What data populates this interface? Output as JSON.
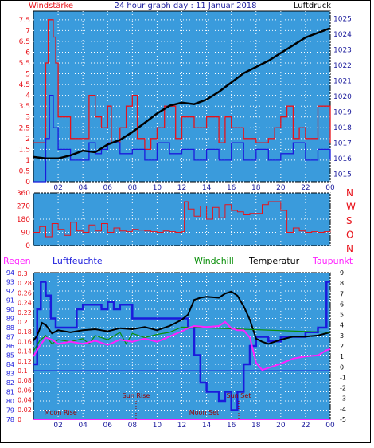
{
  "title": "24 hour graph day : 11 Januar 2018",
  "colors": {
    "panel_bg": "#3a9bdc",
    "grid": "#ffffff",
    "red": "#e8121a",
    "blue": "#1b1bdc",
    "black": "#000000",
    "magenta": "#ff22ff",
    "green": "#0a8f0a",
    "axis_text": "#1b1b9c"
  },
  "chart_data": [
    {
      "id": "wind",
      "type": "line",
      "title": "24 hour graph day : 11 Januar 2018",
      "left_label": "Windstärke",
      "right_label": "Luftdruck",
      "x_ticks": [
        "02",
        "04",
        "06",
        "08",
        "10",
        "12",
        "14",
        "16",
        "18",
        "20",
        "22",
        "00"
      ],
      "y_left_ticks": [
        "0",
        "0.5",
        "1",
        "1.5",
        "2",
        "2.5",
        "3",
        "3.5",
        "4",
        "4.5",
        "5",
        "5.5",
        "6",
        "6.5",
        "7",
        "7.5"
      ],
      "y_right_ticks": [
        "1015",
        "1016",
        "1017",
        "1018",
        "1019",
        "1020",
        "1021",
        "1022",
        "1023",
        "1024",
        "1025"
      ],
      "ylim_left": [
        0,
        7.9
      ],
      "ylim_right": [
        1014.5,
        1025.5
      ],
      "grid": true,
      "series": [
        {
          "name": "Windstärke",
          "role": "gusts",
          "color": "red",
          "axis": "left",
          "x": [
            0,
            1,
            1.2,
            1.3,
            1.6,
            1.8,
            2,
            3,
            4.5,
            5,
            5.5,
            6,
            6.3,
            7,
            7.5,
            8,
            8.4,
            9,
            9.5,
            10,
            10.6,
            11.5,
            12,
            13,
            14,
            15,
            15.5,
            16,
            17,
            18,
            19,
            19.5,
            20,
            20.5,
            21,
            21.5,
            22,
            23,
            24
          ],
          "y": [
            1.8,
            5.5,
            7.5,
            7.5,
            6.7,
            5.5,
            3,
            2,
            4,
            3,
            2.5,
            3.5,
            1.8,
            2.5,
            3.5,
            4,
            2,
            1.5,
            2,
            2.5,
            3.5,
            2,
            3,
            2.5,
            3,
            1.8,
            3,
            2.5,
            2,
            1.8,
            2,
            2.5,
            3,
            3.5,
            2,
            2.5,
            2,
            3.5,
            1.8
          ]
        },
        {
          "name": "Windstärke",
          "role": "mean",
          "color": "blue",
          "axis": "left",
          "x": [
            0,
            1,
            1.3,
            1.6,
            2,
            3,
            4.5,
            5,
            5.5,
            6,
            7,
            8,
            9,
            10,
            11,
            12,
            13,
            14,
            15,
            16,
            17,
            18,
            19,
            20,
            21,
            22,
            23,
            24
          ],
          "y": [
            0,
            2,
            4,
            2.5,
            1.5,
            1,
            1.8,
            1.3,
            1.5,
            1.8,
            1.3,
            1.5,
            1,
            1.8,
            1.3,
            1.5,
            1,
            1.5,
            1,
            1.8,
            1,
            1.5,
            1,
            1.3,
            1.8,
            1,
            1.5,
            1
          ]
        },
        {
          "name": "Luftdruck",
          "color": "black",
          "axis": "right",
          "x": [
            0,
            1,
            2,
            3,
            4,
            5,
            6,
            7,
            8,
            9,
            10,
            11,
            12,
            13,
            14,
            15,
            16,
            17,
            18,
            19,
            20,
            21,
            22,
            23,
            24
          ],
          "y": [
            1016.1,
            1016,
            1016,
            1016.2,
            1016.5,
            1016.4,
            1016.9,
            1017.2,
            1017.7,
            1018.3,
            1018.9,
            1019.4,
            1019.6,
            1019.5,
            1019.8,
            1020.3,
            1020.9,
            1021.5,
            1021.9,
            1022.3,
            1022.8,
            1023.3,
            1023.8,
            1024.1,
            1024.4
          ]
        }
      ]
    },
    {
      "id": "direction",
      "type": "line",
      "right_labels": [
        "N",
        "W",
        "S",
        "O",
        "N"
      ],
      "x_ticks": [
        "02",
        "04",
        "06",
        "08",
        "10",
        "12",
        "14",
        "16",
        "18",
        "20",
        "22",
        "00"
      ],
      "y_ticks": [
        "360",
        "270",
        "180",
        "90",
        "0"
      ],
      "ylim": [
        0,
        360
      ],
      "grid": true,
      "series": [
        {
          "name": "Windrichtung",
          "color": "red",
          "x": [
            0,
            0.5,
            1,
            1.5,
            2,
            2.5,
            3,
            3.5,
            4,
            4.5,
            5,
            5.5,
            6,
            6.5,
            7,
            7.5,
            8,
            8.5,
            9,
            9.5,
            10,
            10.5,
            11,
            11.5,
            12,
            12.2,
            12.5,
            13,
            13.5,
            14,
            14.5,
            15,
            15.5,
            16,
            16.5,
            17,
            17.5,
            18,
            18.5,
            19,
            19.5,
            20,
            20.5,
            21,
            21.5,
            22,
            22.5,
            23,
            23.5,
            24
          ],
          "y": [
            90,
            130,
            60,
            150,
            110,
            70,
            160,
            100,
            90,
            140,
            100,
            150,
            90,
            120,
            100,
            95,
            110,
            105,
            100,
            95,
            90,
            100,
            95,
            90,
            95,
            300,
            250,
            200,
            270,
            180,
            260,
            190,
            280,
            240,
            230,
            210,
            220,
            220,
            280,
            300,
            300,
            240,
            90,
            120,
            100,
            90,
            95,
            90,
            95,
            100
          ]
        }
      ]
    },
    {
      "id": "climate",
      "type": "line",
      "legend": [
        "Regen",
        "Luftfeuchte",
        "Windchill",
        "Temperatur",
        "Taupunkt"
      ],
      "x_ticks": [
        "02",
        "04",
        "06",
        "08",
        "10",
        "12",
        "14",
        "16",
        "18",
        "20",
        "22",
        "00"
      ],
      "y_rain_ticks": [
        "0",
        "0.02",
        "0.04",
        "0.06",
        "0.08",
        "0.1",
        "0.12",
        "0.14",
        "0.16",
        "0.18",
        "0.2",
        "0.22",
        "0.24",
        "0.26",
        "0.28",
        "0.3"
      ],
      "y_humidity_ticks": [
        "78",
        "79",
        "80",
        "81",
        "82",
        "83",
        "84",
        "85",
        "86",
        "87",
        "88",
        "89",
        "90",
        "91",
        "92",
        "93",
        "94"
      ],
      "y_temp_ticks": [
        "-5",
        "-4",
        "-3",
        "-2",
        "-1",
        "0",
        "1",
        "2",
        "3",
        "4",
        "5",
        "6",
        "7",
        "8",
        "9"
      ],
      "ylim_humidity": [
        78,
        94
      ],
      "ylim_temp": [
        -5,
        9
      ],
      "grid": true,
      "annotations": [
        {
          "label": "Moon Rise",
          "x": 2.2,
          "row": "low"
        },
        {
          "label": "Sun Rise",
          "x": 8.3,
          "row": "high"
        },
        {
          "label": "Moon Set",
          "x": 13.8,
          "row": "low"
        },
        {
          "label": "Sun Set",
          "x": 16.6,
          "row": "high"
        }
      ],
      "series": [
        {
          "name": "Luftfeuchte",
          "color": "blue",
          "x": [
            0,
            0.3,
            0.6,
            1,
            1.4,
            1.8,
            2,
            3,
            3.5,
            4,
            5,
            5.5,
            6,
            6.5,
            7,
            8,
            10,
            12,
            12.5,
            13,
            13.5,
            14,
            14.5,
            15,
            15.5,
            16,
            16.5,
            17,
            17.5,
            18,
            19,
            20,
            21,
            22,
            23,
            23.7,
            24
          ],
          "y": [
            84,
            90,
            93,
            91.5,
            89,
            88,
            88,
            88,
            90,
            90.5,
            90.5,
            90,
            90.8,
            90,
            90.5,
            89,
            89,
            89,
            88,
            85,
            82,
            81,
            81,
            80,
            81,
            79,
            81,
            84,
            86,
            87,
            86.5,
            87,
            87,
            87.5,
            88,
            93,
            93
          ]
        },
        {
          "name": "Temperatur",
          "color": "black",
          "x": [
            0,
            0.3,
            0.7,
            1,
            1.5,
            2,
            3,
            4,
            5,
            6,
            7,
            8,
            9,
            10,
            11,
            12,
            12.5,
            13,
            13.5,
            14,
            15,
            15.5,
            16,
            16.5,
            17,
            17.5,
            18,
            18.5,
            19,
            20,
            21,
            22,
            23,
            24
          ],
          "y": [
            2.5,
            3,
            4.2,
            4,
            3.2,
            3.5,
            3.3,
            3.5,
            3.6,
            3.4,
            3.7,
            3.6,
            3.8,
            3.5,
            3.9,
            4.5,
            5,
            6.4,
            6.6,
            6.7,
            6.6,
            7,
            7.2,
            6.8,
            5.8,
            4.5,
            2.7,
            2.4,
            2.2,
            2.6,
            2.9,
            2.9,
            3,
            3.3
          ]
        },
        {
          "name": "Windchill",
          "color": "green",
          "x": [
            0,
            0.5,
            1,
            1.5,
            2,
            3,
            4,
            4.5,
            5,
            6,
            7,
            7.5,
            8,
            9,
            10,
            11,
            12,
            24
          ],
          "y": [
            1.5,
            2.5,
            3,
            2.2,
            2.6,
            2.4,
            2.7,
            2.2,
            3,
            2.6,
            3.3,
            2.2,
            3.2,
            2.8,
            3.1,
            3.3,
            3.8,
            3.3
          ]
        },
        {
          "name": "Taupunkt",
          "color": "magenta",
          "x": [
            0,
            0.5,
            1,
            1.5,
            2,
            3,
            4,
            5,
            6,
            7,
            8,
            9,
            10,
            11,
            12,
            12.5,
            13,
            14,
            15,
            15.5,
            16,
            16.5,
            17,
            17.5,
            18,
            18.5,
            19,
            20,
            21,
            22,
            23,
            23.7,
            24
          ],
          "y": [
            1,
            2,
            2.8,
            2.6,
            2.2,
            2.4,
            2.2,
            2.5,
            2.1,
            2.6,
            2.4,
            2.7,
            2.4,
            2.9,
            3.4,
            3.7,
            3.9,
            3.8,
            3.9,
            4.3,
            3.7,
            3.5,
            3.5,
            2.8,
            0.4,
            -0.3,
            -0.1,
            0.3,
            0.8,
            1,
            1.1,
            1.6,
            1.7
          ]
        },
        {
          "name": "Regen",
          "color": "blue",
          "values_mm": [
            0.1,
            0.1
          ]
        }
      ]
    }
  ]
}
